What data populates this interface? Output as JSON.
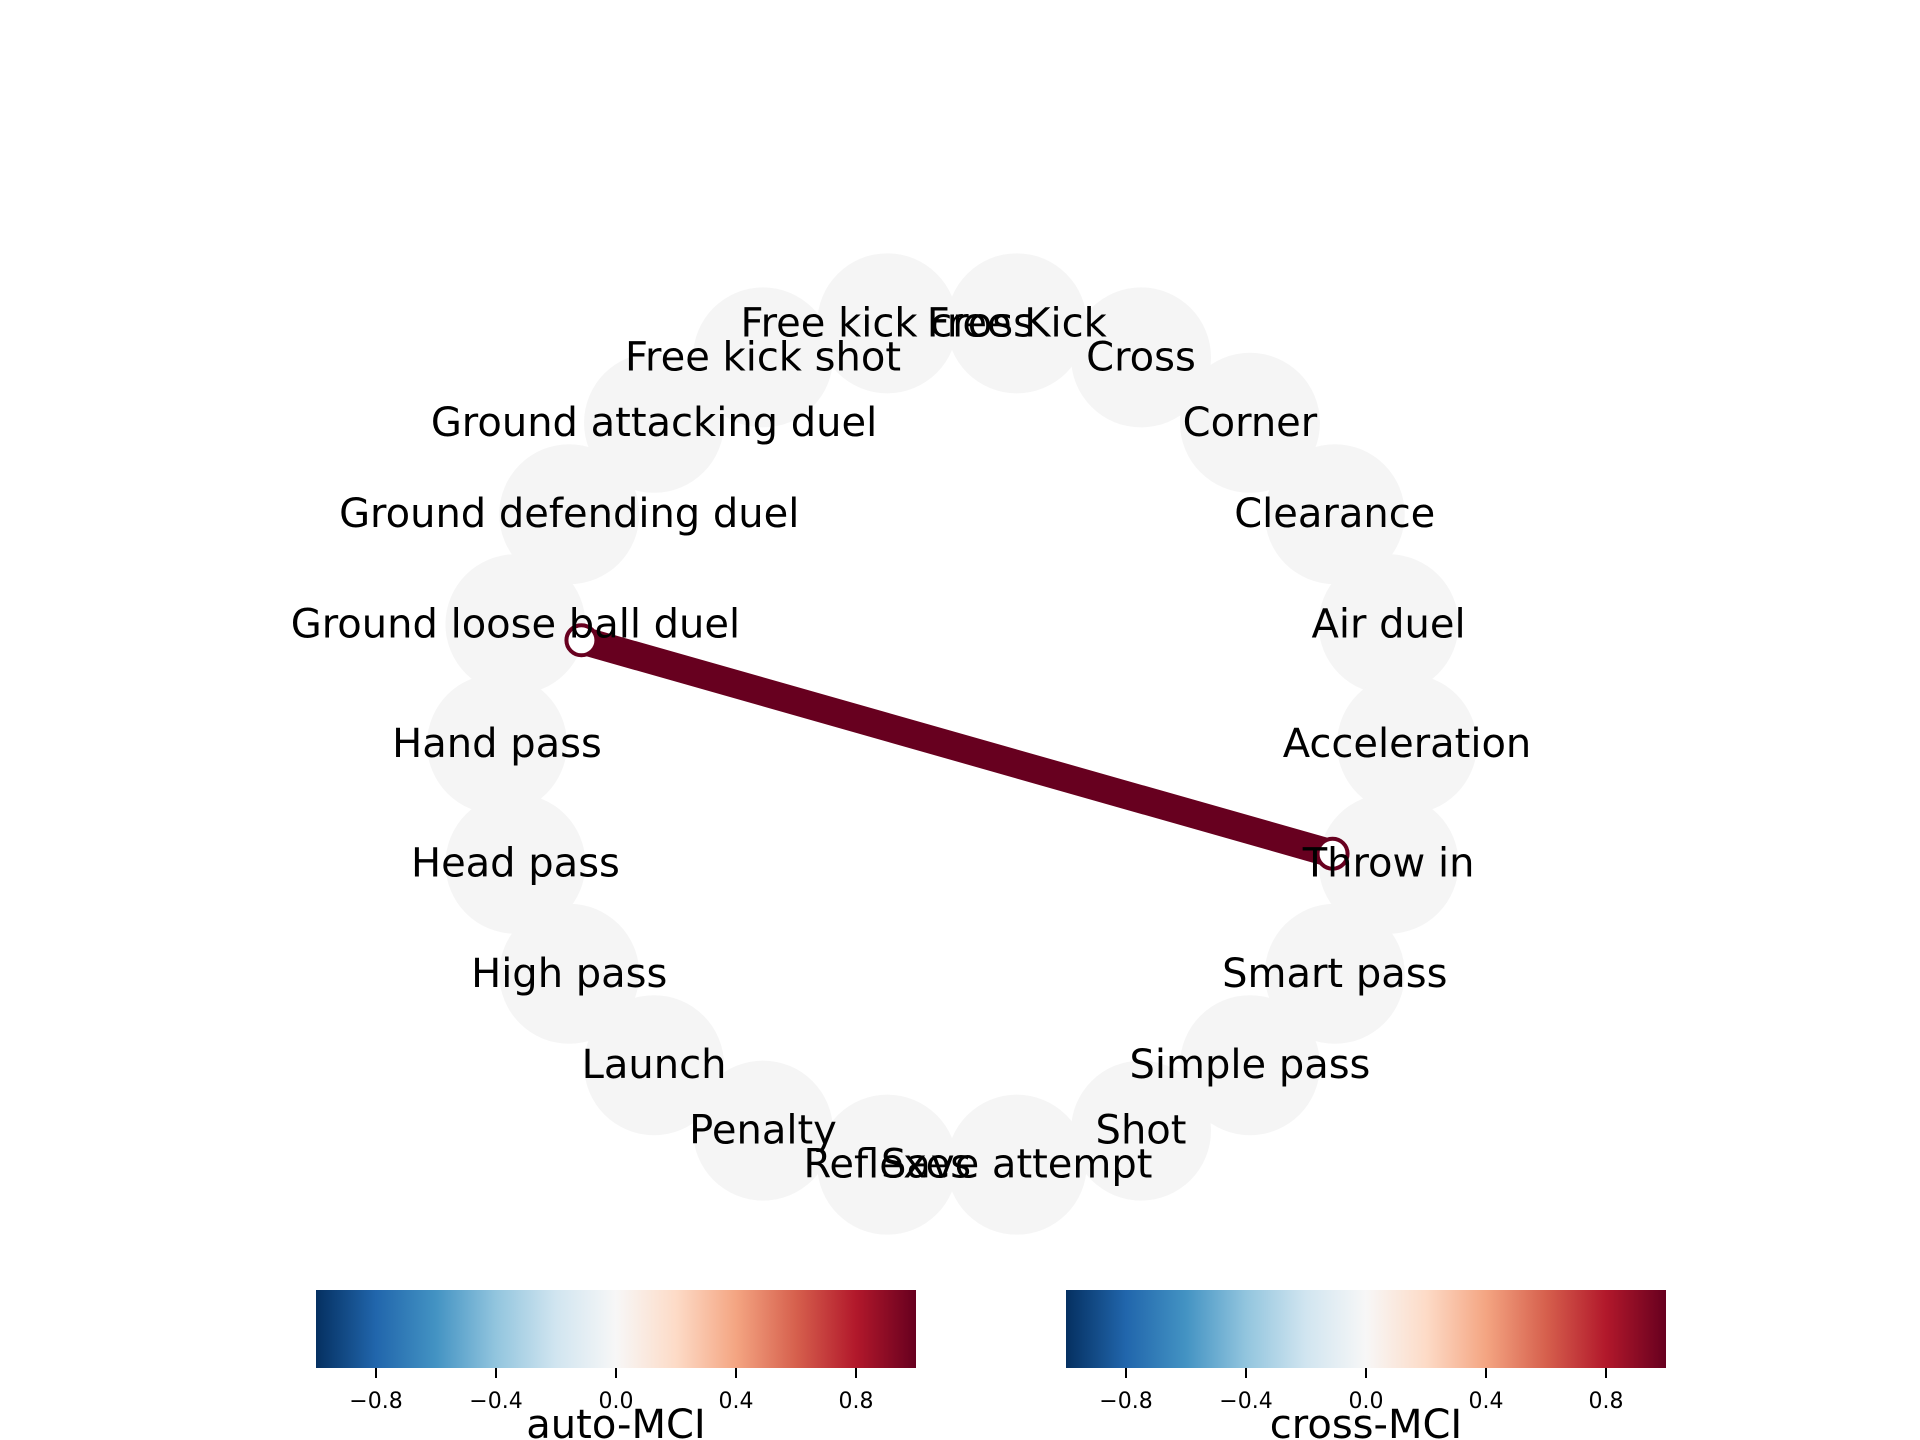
{
  "chart_data": {
    "type": "network",
    "nodes": [
      "Free Kick",
      "Cross",
      "Corner",
      "Clearance",
      "Air duel",
      "Acceleration",
      "Throw in",
      "Smart pass",
      "Simple pass",
      "Shot",
      "Save attempt",
      "Reflexes",
      "Penalty",
      "Launch",
      "High pass",
      "Head pass",
      "Hand pass",
      "Ground loose ball duel",
      "Ground defending duel",
      "Ground attacking duel",
      "Free kick shot",
      "Free kick cross"
    ],
    "edges": [
      {
        "source": "Ground loose ball duel",
        "target": "Throw in",
        "value": 1.0,
        "kind": "cross-MCI"
      }
    ],
    "self_loops": [
      {
        "node": "Ground loose ball duel",
        "value": 1.0,
        "kind": "auto-MCI"
      },
      {
        "node": "Throw in",
        "value": 1.0,
        "kind": "auto-MCI"
      }
    ],
    "colorbars": [
      {
        "label": "auto-MCI",
        "ticks": [
          "−0.8",
          "−0.4",
          "0.0",
          "0.4",
          "0.8"
        ],
        "tick_values": [
          -0.8,
          -0.4,
          0.0,
          0.4,
          0.8
        ],
        "range": [
          -1,
          1
        ],
        "colormap": "RdBu_r"
      },
      {
        "label": "cross-MCI",
        "ticks": [
          "−0.8",
          "−0.4",
          "0.0",
          "0.4",
          "0.8"
        ],
        "tick_values": [
          -0.8,
          -0.4,
          0.0,
          0.4,
          0.8
        ],
        "range": [
          -1,
          1
        ],
        "colormap": "RdBu_r"
      }
    ],
    "colors": {
      "node_fill": "#f5f5f5",
      "edge_max": "#67001f",
      "cmap_stops": [
        "#053061",
        "#2166ac",
        "#4393c3",
        "#92c5de",
        "#d1e5f0",
        "#f7f7f7",
        "#fddbc7",
        "#f4a582",
        "#d6604d",
        "#b2182b",
        "#67001f"
      ]
    }
  }
}
